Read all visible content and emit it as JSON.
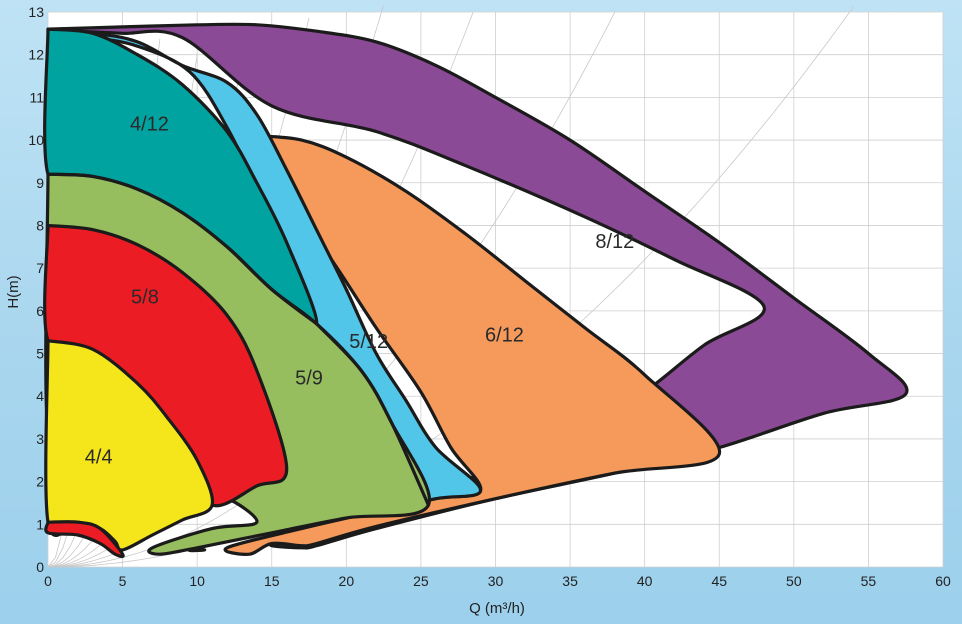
{
  "chart_data": {
    "type": "area",
    "title": "",
    "xlabel": "Q (m³/h)",
    "ylabel": "H(m)",
    "xlim": [
      0,
      60
    ],
    "ylim": [
      0,
      13
    ],
    "xticks": [
      "0",
      "5",
      "10",
      "15",
      "20",
      "25",
      "30",
      "35",
      "40",
      "45",
      "50",
      "55",
      "60"
    ],
    "yticks": [
      "0",
      "1",
      "2",
      "3",
      "4",
      "5",
      "6",
      "7",
      "8",
      "9",
      "10",
      "11",
      "12",
      "13"
    ],
    "grid": true,
    "legend": "none",
    "series": [
      {
        "name": "8/12",
        "color": "#8a4a96",
        "label_at": [
          38,
          7.6
        ],
        "outline": [
          [
            0,
            12.6
          ],
          [
            5,
            12.65
          ],
          [
            10,
            12.7
          ],
          [
            14,
            12.7
          ],
          [
            18,
            12.55
          ],
          [
            22,
            12.3
          ],
          [
            26,
            11.75
          ],
          [
            30,
            11.0
          ],
          [
            35,
            10.0
          ],
          [
            40,
            8.8
          ],
          [
            45,
            7.6
          ],
          [
            50,
            6.3
          ],
          [
            55,
            5.0
          ],
          [
            57.5,
            4.05
          ],
          [
            52,
            3.6
          ],
          [
            45,
            2.8
          ],
          [
            38,
            2.2
          ],
          [
            30,
            1.6
          ],
          [
            22,
            0.9
          ],
          [
            18,
            0.5
          ],
          [
            17,
            0.45
          ],
          [
            15,
            0.5
          ],
          [
            15.5,
            0.6
          ],
          [
            17,
            0.9
          ],
          [
            22,
            1.55
          ],
          [
            28,
            2.05
          ],
          [
            35,
            2.95
          ],
          [
            40,
            4.1
          ],
          [
            44,
            5.2
          ],
          [
            48,
            6.1
          ],
          [
            42,
            7.2
          ],
          [
            36,
            8.2
          ],
          [
            28,
            9.4
          ],
          [
            22,
            10.2
          ],
          [
            15,
            10.8
          ],
          [
            9,
            12.4
          ],
          [
            5,
            12.5
          ],
          [
            2,
            12.55
          ],
          [
            0,
            12.6
          ]
        ]
      },
      {
        "name": "6/12",
        "color": "#f59a5b",
        "label_at": [
          30.6,
          5.4
        ],
        "outline": [
          [
            14,
            10.1
          ],
          [
            17,
            10.0
          ],
          [
            20,
            9.6
          ],
          [
            24,
            8.8
          ],
          [
            28,
            7.8
          ],
          [
            32,
            6.7
          ],
          [
            36,
            5.6
          ],
          [
            40,
            4.5
          ],
          [
            45,
            2.65
          ],
          [
            38,
            2.2
          ],
          [
            30,
            1.6
          ],
          [
            22,
            0.95
          ],
          [
            18,
            0.55
          ],
          [
            17,
            0.5
          ],
          [
            15,
            0.55
          ],
          [
            13.5,
            0.3
          ],
          [
            12,
            0.45
          ],
          [
            17,
            0.9
          ],
          [
            22,
            1.3
          ],
          [
            26,
            1.6
          ],
          [
            29,
            1.8
          ],
          [
            27,
            2.8
          ],
          [
            25,
            4.1
          ],
          [
            22,
            5.6
          ],
          [
            19,
            7.2
          ],
          [
            16,
            8.6
          ],
          [
            14,
            10.1
          ]
        ]
      },
      {
        "name": "5/12",
        "color": "#52c6e9",
        "label_at": [
          21.5,
          5.25
        ],
        "outline": [
          [
            0,
            12.55
          ],
          [
            3,
            12.5
          ],
          [
            6,
            12.3
          ],
          [
            9,
            11.75
          ],
          [
            12,
            11.35
          ],
          [
            14,
            10.6
          ],
          [
            16,
            9.3
          ],
          [
            18,
            7.9
          ],
          [
            20,
            6.5
          ],
          [
            22,
            5.0
          ],
          [
            24,
            3.9
          ],
          [
            26,
            2.8
          ],
          [
            29,
            1.8
          ],
          [
            26,
            1.6
          ],
          [
            22,
            1.3
          ],
          [
            18,
            1.05
          ],
          [
            14,
            0.75
          ],
          [
            10,
            0.45
          ],
          [
            10.5,
            0.4
          ],
          [
            9.5,
            0.4
          ],
          [
            12,
            0.6
          ],
          [
            17,
            0.95
          ],
          [
            22,
            1.3
          ],
          [
            25.5,
            1.5
          ],
          [
            24,
            2.6
          ],
          [
            22,
            3.6
          ],
          [
            20,
            4.4
          ],
          [
            18,
            5.65
          ],
          [
            16,
            7.0
          ],
          [
            14,
            8.8
          ],
          [
            12,
            10.3
          ],
          [
            9.5,
            11.6
          ],
          [
            6,
            12.2
          ],
          [
            3,
            12.4
          ],
          [
            0,
            12.55
          ]
        ]
      },
      {
        "name": "4/12",
        "color": "#00a3a0",
        "label_at": [
          6.8,
          10.35
        ],
        "outline": [
          [
            0,
            12.6
          ],
          [
            3,
            12.5
          ],
          [
            6,
            12.0
          ],
          [
            9,
            11.3
          ],
          [
            12,
            10.2
          ],
          [
            14,
            9.0
          ],
          [
            16,
            7.6
          ],
          [
            18,
            5.7
          ],
          [
            15,
            6.5
          ],
          [
            12,
            7.5
          ],
          [
            9,
            8.2
          ],
          [
            6,
            8.8
          ],
          [
            3,
            9.1
          ],
          [
            0,
            9.2
          ],
          [
            0,
            12.6
          ]
        ]
      },
      {
        "name": "5/9",
        "color": "#96bd5e",
        "label_at": [
          17.5,
          4.4
        ],
        "outline": [
          [
            0,
            9.2
          ],
          [
            3,
            9.15
          ],
          [
            6,
            8.85
          ],
          [
            9,
            8.3
          ],
          [
            12,
            7.5
          ],
          [
            15,
            6.5
          ],
          [
            18,
            5.7
          ],
          [
            21,
            4.6
          ],
          [
            23,
            3.4
          ],
          [
            25.5,
            1.45
          ],
          [
            20,
            1.15
          ],
          [
            15,
            0.8
          ],
          [
            10,
            0.45
          ],
          [
            7.5,
            0.3
          ],
          [
            7,
            0.45
          ],
          [
            11,
            0.9
          ],
          [
            14,
            1.05
          ],
          [
            12,
            1.6
          ],
          [
            10.5,
            1.45
          ],
          [
            8,
            2.0
          ],
          [
            6,
            2.6
          ],
          [
            4,
            3.0
          ],
          [
            2,
            3.1
          ],
          [
            0,
            3.1
          ],
          [
            0,
            9.2
          ]
        ]
      },
      {
        "name": "5/8",
        "color": "#ec1c24",
        "label_at": [
          6.5,
          6.3
        ],
        "outline": [
          [
            0,
            8.0
          ],
          [
            3,
            7.9
          ],
          [
            6,
            7.55
          ],
          [
            9,
            6.9
          ],
          [
            12,
            5.9
          ],
          [
            14,
            4.6
          ],
          [
            16,
            2.3
          ],
          [
            14,
            1.9
          ],
          [
            11,
            1.45
          ],
          [
            9,
            2.5
          ],
          [
            6,
            4.2
          ],
          [
            3,
            5.0
          ],
          [
            0,
            5.3
          ],
          [
            0,
            8.0
          ]
        ]
      },
      {
        "name": "4/4",
        "color": "#f4e61b",
        "label_at": [
          3.4,
          2.55
        ],
        "outline": [
          [
            0,
            5.3
          ],
          [
            3,
            5.1
          ],
          [
            6,
            4.3
          ],
          [
            8,
            3.5
          ],
          [
            10,
            2.5
          ],
          [
            11,
            1.45
          ],
          [
            9,
            1.1
          ],
          [
            7,
            0.75
          ],
          [
            5,
            0.4
          ],
          [
            4.5,
            0.6
          ],
          [
            3.5,
            0.9
          ],
          [
            2,
            1.05
          ],
          [
            0,
            1.05
          ],
          [
            0,
            5.3
          ]
        ]
      },
      {
        "name": "4/4-low",
        "color": "#ec1c24",
        "outline": [
          [
            0,
            1.05
          ],
          [
            2,
            1.05
          ],
          [
            3.5,
            0.9
          ],
          [
            5,
            0.3
          ],
          [
            4.5,
            0.3
          ],
          [
            3.5,
            0.55
          ],
          [
            2,
            0.75
          ],
          [
            0,
            0.8
          ],
          [
            0,
            1.05
          ]
        ]
      }
    ],
    "dividers": [
      {
        "name": "4/12-to-5/9-border",
        "points": [
          [
            0,
            9.2
          ],
          [
            3,
            9.15
          ],
          [
            6,
            8.85
          ],
          [
            9,
            8.3
          ],
          [
            12,
            7.5
          ],
          [
            15,
            6.5
          ],
          [
            18,
            5.7
          ]
        ]
      },
      {
        "name": "5/9-upper-right-border",
        "points": [
          [
            18,
            5.7
          ],
          [
            21,
            4.6
          ],
          [
            23,
            3.4
          ],
          [
            25.5,
            1.45
          ]
        ]
      }
    ]
  }
}
